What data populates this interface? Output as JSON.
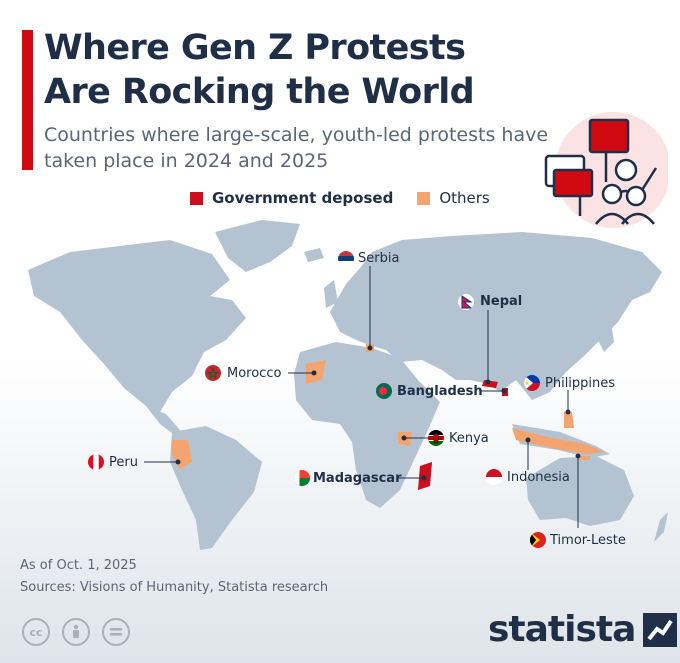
{
  "title": "Where Gen Z Protests Are Rocking the World",
  "subtitle": "Countries where large-scale, youth-led protests have taken place in 2024 and 2025",
  "legend": {
    "deposed_label": "Government deposed",
    "others_label": "Others"
  },
  "colors": {
    "deposed": "#c8101e",
    "others": "#f4a46f",
    "land": "#b4c3d1",
    "accent": "#d10a11",
    "text": "#1f2f48"
  },
  "countries": [
    {
      "name": "Serbia",
      "category": "Others"
    },
    {
      "name": "Nepal",
      "category": "Government deposed"
    },
    {
      "name": "Morocco",
      "category": "Others"
    },
    {
      "name": "Bangladesh",
      "category": "Government deposed"
    },
    {
      "name": "Philippines",
      "category": "Others"
    },
    {
      "name": "Kenya",
      "category": "Others"
    },
    {
      "name": "Peru",
      "category": "Others"
    },
    {
      "name": "Madagascar",
      "category": "Government deposed"
    },
    {
      "name": "Indonesia",
      "category": "Others"
    },
    {
      "name": "Timor-Leste",
      "category": "Others"
    }
  ],
  "footer": {
    "date": "As of Oct. 1, 2025",
    "sources": "Sources: Visions of Humanity, Statista research",
    "brand": "statista"
  }
}
